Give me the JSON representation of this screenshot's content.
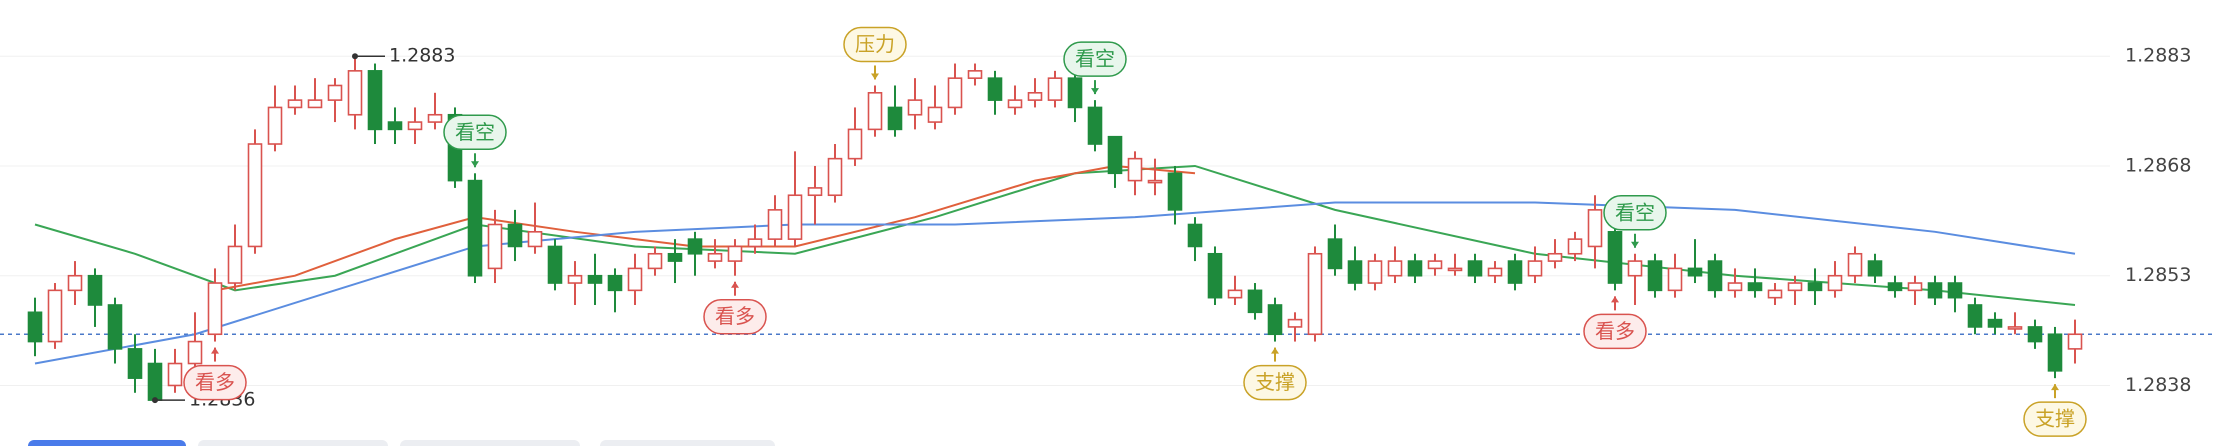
{
  "chart_data": {
    "type": "candlestick",
    "up_color": "#d9534f",
    "down_color": "#1e8a3c",
    "candles": {
      "open": [
        1.2848,
        1.2844,
        1.2851,
        1.2853,
        1.2849,
        1.2843,
        1.2841,
        1.2838,
        1.2841,
        1.2845,
        1.2852,
        1.2857,
        1.2871,
        1.2876,
        1.2876,
        1.2877,
        1.2875,
        1.2881,
        1.2874,
        1.2873,
        1.2874,
        1.2875,
        1.2866,
        1.2854,
        1.286,
        1.2857,
        1.2857,
        1.2852,
        1.2853,
        1.2853,
        1.2851,
        1.2854,
        1.2856,
        1.2858,
        1.2855,
        1.2855,
        1.2857,
        1.2858,
        1.2858,
        1.2864,
        1.2864,
        1.2869,
        1.2873,
        1.2876,
        1.2875,
        1.2874,
        1.2876,
        1.288,
        1.288,
        1.2876,
        1.2877,
        1.2877,
        1.288,
        1.2876,
        1.2872,
        1.2866,
        1.2866,
        1.2867,
        1.286,
        1.2856,
        1.285,
        1.2851,
        1.2849,
        1.2846,
        1.2845,
        1.2858,
        1.2855,
        1.2852,
        1.2853,
        1.2855,
        1.2854,
        1.2854,
        1.2855,
        1.2853,
        1.2855,
        1.2853,
        1.2855,
        1.2856,
        1.2857,
        1.2859,
        1.2853,
        1.2855,
        1.2851,
        1.2854,
        1.2855,
        1.2851,
        1.2852,
        1.285,
        1.2851,
        1.2852,
        1.2851,
        1.2853,
        1.2855,
        1.2852,
        1.2851,
        1.2852,
        1.2852,
        1.2849,
        1.2847,
        1.2846,
        1.2846,
        1.2845,
        1.2843
      ],
      "close": [
        1.2844,
        1.2851,
        1.2853,
        1.2849,
        1.2843,
        1.2839,
        1.2836,
        1.2841,
        1.2844,
        1.2852,
        1.2857,
        1.2871,
        1.2876,
        1.2877,
        1.2877,
        1.2879,
        1.2881,
        1.2873,
        1.2873,
        1.2874,
        1.2875,
        1.2866,
        1.2853,
        1.286,
        1.2857,
        1.2859,
        1.2852,
        1.2853,
        1.2852,
        1.2851,
        1.2854,
        1.2856,
        1.2855,
        1.2856,
        1.2856,
        1.2857,
        1.2858,
        1.2862,
        1.2864,
        1.2865,
        1.2869,
        1.2873,
        1.2878,
        1.2873,
        1.2877,
        1.2876,
        1.288,
        1.2881,
        1.2877,
        1.2877,
        1.2878,
        1.288,
        1.2876,
        1.2871,
        1.2867,
        1.2869,
        1.2866,
        1.2862,
        1.2857,
        1.285,
        1.2851,
        1.2848,
        1.2845,
        1.2847,
        1.2856,
        1.2854,
        1.2852,
        1.2855,
        1.2855,
        1.2853,
        1.2855,
        1.2854,
        1.2853,
        1.2854,
        1.2852,
        1.2855,
        1.2856,
        1.2858,
        1.2862,
        1.2852,
        1.2855,
        1.2851,
        1.2854,
        1.2853,
        1.2851,
        1.2852,
        1.2851,
        1.2851,
        1.2852,
        1.2851,
        1.2853,
        1.2856,
        1.2853,
        1.2851,
        1.2852,
        1.285,
        1.285,
        1.2846,
        1.2846,
        1.2846,
        1.2844,
        1.284,
        1.2845
      ],
      "high": [
        1.285,
        1.2852,
        1.2855,
        1.2854,
        1.285,
        1.2845,
        1.2843,
        1.2843,
        1.2848,
        1.2854,
        1.286,
        1.2873,
        1.2879,
        1.2879,
        1.288,
        1.288,
        1.2883,
        1.2882,
        1.2876,
        1.2876,
        1.2878,
        1.2876,
        1.2867,
        1.2862,
        1.2862,
        1.2863,
        1.2858,
        1.2855,
        1.2856,
        1.2854,
        1.2856,
        1.2857,
        1.2858,
        1.2859,
        1.2858,
        1.2858,
        1.286,
        1.2864,
        1.287,
        1.2868,
        1.2871,
        1.2876,
        1.2879,
        1.2879,
        1.288,
        1.2879,
        1.2882,
        1.2882,
        1.2881,
        1.2879,
        1.288,
        1.2881,
        1.2882,
        1.2877,
        1.2872,
        1.287,
        1.2869,
        1.2868,
        1.2861,
        1.2857,
        1.2853,
        1.2852,
        1.285,
        1.2848,
        1.2857,
        1.286,
        1.2857,
        1.2856,
        1.2857,
        1.2856,
        1.2856,
        1.2856,
        1.2856,
        1.2855,
        1.2856,
        1.2857,
        1.2858,
        1.2859,
        1.2864,
        1.2861,
        1.2856,
        1.2856,
        1.2856,
        1.2858,
        1.2856,
        1.2854,
        1.2854,
        1.2852,
        1.2853,
        1.2854,
        1.2855,
        1.2857,
        1.2856,
        1.2853,
        1.2853,
        1.2853,
        1.2853,
        1.285,
        1.2848,
        1.2848,
        1.2847,
        1.2846,
        1.2847
      ],
      "low": [
        1.2842,
        1.2843,
        1.2849,
        1.2846,
        1.2841,
        1.2837,
        1.2836,
        1.2837,
        1.284,
        1.2844,
        1.2851,
        1.2856,
        1.287,
        1.2875,
        1.2876,
        1.2874,
        1.2873,
        1.2871,
        1.2871,
        1.2871,
        1.2873,
        1.2865,
        1.2852,
        1.2852,
        1.2855,
        1.2856,
        1.2851,
        1.2849,
        1.2849,
        1.2848,
        1.2849,
        1.2853,
        1.2852,
        1.2853,
        1.2854,
        1.2853,
        1.2856,
        1.2857,
        1.2857,
        1.286,
        1.2863,
        1.2868,
        1.2872,
        1.2872,
        1.2873,
        1.2873,
        1.2875,
        1.2879,
        1.2875,
        1.2875,
        1.2876,
        1.2876,
        1.2874,
        1.287,
        1.2865,
        1.2864,
        1.2864,
        1.286,
        1.2855,
        1.2849,
        1.2849,
        1.2847,
        1.2844,
        1.2844,
        1.2844,
        1.2853,
        1.2851,
        1.2851,
        1.2852,
        1.2852,
        1.2853,
        1.2853,
        1.2852,
        1.2852,
        1.2851,
        1.2852,
        1.2854,
        1.2855,
        1.2854,
        1.2851,
        1.2849,
        1.285,
        1.285,
        1.2852,
        1.285,
        1.285,
        1.285,
        1.2849,
        1.2849,
        1.2849,
        1.285,
        1.2852,
        1.2852,
        1.285,
        1.2849,
        1.2849,
        1.2848,
        1.2845,
        1.2845,
        1.2845,
        1.2843,
        1.2839,
        1.2841
      ]
    },
    "lines": [
      {
        "color": "#3aa655",
        "x": [
          0,
          5,
          10,
          15,
          22,
          30,
          38,
          45,
          52,
          58,
          65,
          75,
          85,
          95,
          102
        ],
        "values": [
          1.286,
          1.2856,
          1.2851,
          1.2853,
          1.286,
          1.2857,
          1.2856,
          1.2861,
          1.2867,
          1.2868,
          1.2862,
          1.2856,
          1.2853,
          1.2851,
          1.2849
        ]
      },
      {
        "color": "#e0603c",
        "x": [
          9,
          13,
          18,
          22,
          27,
          33,
          38,
          44,
          50,
          54,
          58
        ],
        "values": [
          1.2851,
          1.2853,
          1.2858,
          1.2861,
          1.2859,
          1.2857,
          1.2857,
          1.2861,
          1.2866,
          1.2868,
          1.2867
        ]
      },
      {
        "color": "#5b8de0",
        "x": [
          0,
          8,
          15,
          22,
          30,
          38,
          46,
          55,
          65,
          75,
          85,
          95,
          102
        ],
        "values": [
          1.2841,
          1.2845,
          1.2851,
          1.2857,
          1.2859,
          1.286,
          1.286,
          1.2861,
          1.2863,
          1.2863,
          1.2862,
          1.2859,
          1.2856
        ]
      }
    ],
    "current_price": 1.2845,
    "ylim": [
      1.283,
      1.289
    ],
    "yticks": [
      1.2838,
      1.2853,
      1.2868,
      1.2883
    ],
    "grid": true,
    "price_marks": [
      {
        "index": 16,
        "value": 1.2883,
        "side": "top"
      },
      {
        "index": 6,
        "value": 1.2836,
        "side": "bottom"
      }
    ],
    "signals": [
      {
        "index": 9,
        "label": "看多",
        "side": "below",
        "color": "#d9534f",
        "fill": "#fdeceb"
      },
      {
        "index": 22,
        "label": "看空",
        "side": "above",
        "color": "#2f9a4c",
        "fill": "#e8f6ec"
      },
      {
        "index": 35,
        "label": "看多",
        "side": "below",
        "color": "#d9534f",
        "fill": "#fdeceb"
      },
      {
        "index": 42,
        "label": "压力",
        "side": "above",
        "color": "#c9a227",
        "fill": "#fdf8e4"
      },
      {
        "index": 53,
        "label": "看空",
        "side": "above",
        "color": "#2f9a4c",
        "fill": "#e8f6ec"
      },
      {
        "index": 62,
        "label": "支撑",
        "side": "below",
        "color": "#c9a227",
        "fill": "#fdf8e4"
      },
      {
        "index": 79,
        "label": "看多",
        "side": "below",
        "color": "#d9534f",
        "fill": "#fdeceb"
      },
      {
        "index": 80,
        "label": "看空",
        "side": "above",
        "color": "#2f9a4c",
        "fill": "#e8f6ec"
      },
      {
        "index": 101,
        "label": "支撑",
        "side": "below",
        "color": "#c9a227",
        "fill": "#fdf8e4"
      }
    ]
  }
}
